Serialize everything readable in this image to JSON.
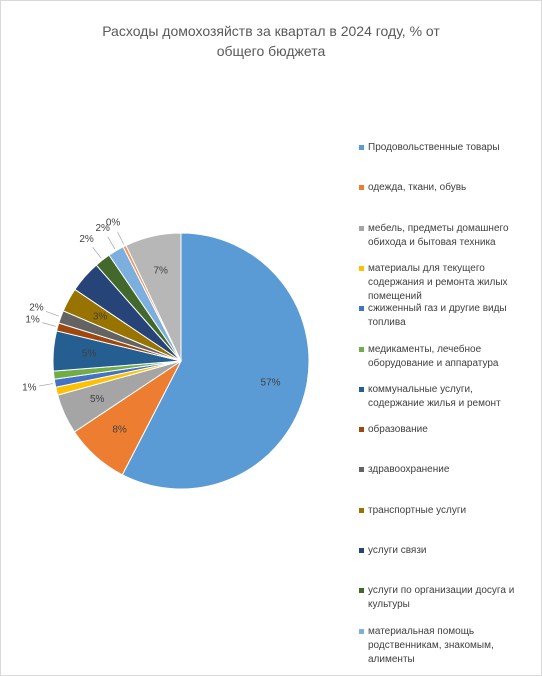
{
  "chart_data": {
    "type": "pie",
    "title": "Расходы домохозяйств за квартал в 2024 году, % от общего бюджета",
    "categories": [
      "Продовольственные товары",
      "одежда, ткани, обувь",
      "мебель, предметы домашнего обихода и бытовая техника",
      "материалы для текущего содержания и ремонта жилых помещений",
      "сжиженный газ и другие виды топлива",
      "медикаменты, лечебное оборудование и аппаратура",
      "коммунальные услуги, содержание жилья и ремонт",
      "образование",
      "здравоохранение",
      "транспортные услуги",
      "услуги связи",
      "услуги по организации досуга и культуры",
      "материальная помощь родственникам, знакомым, алименты",
      null,
      null
    ],
    "values": [
      57,
      8,
      5,
      1,
      1,
      1,
      5,
      1,
      1.6,
      3,
      4,
      2,
      2,
      0.4,
      7
    ],
    "value_labels": [
      "57%",
      "8%",
      "5%",
      null,
      "1%",
      null,
      "5%",
      "1%",
      "2%",
      "3%",
      null,
      "2%",
      "2%",
      "0%",
      "7%"
    ],
    "colors": [
      "#5b9bd5",
      "#ed7d31",
      "#a5a5a5",
      "#ffc000",
      "#4472c4",
      "#70ad47",
      "#255e91",
      "#9e480e",
      "#636363",
      "#997300",
      "#264478",
      "#43682b",
      "#7cafdd",
      "#f1975a",
      "#b7b7b7"
    ],
    "legend": "right"
  }
}
